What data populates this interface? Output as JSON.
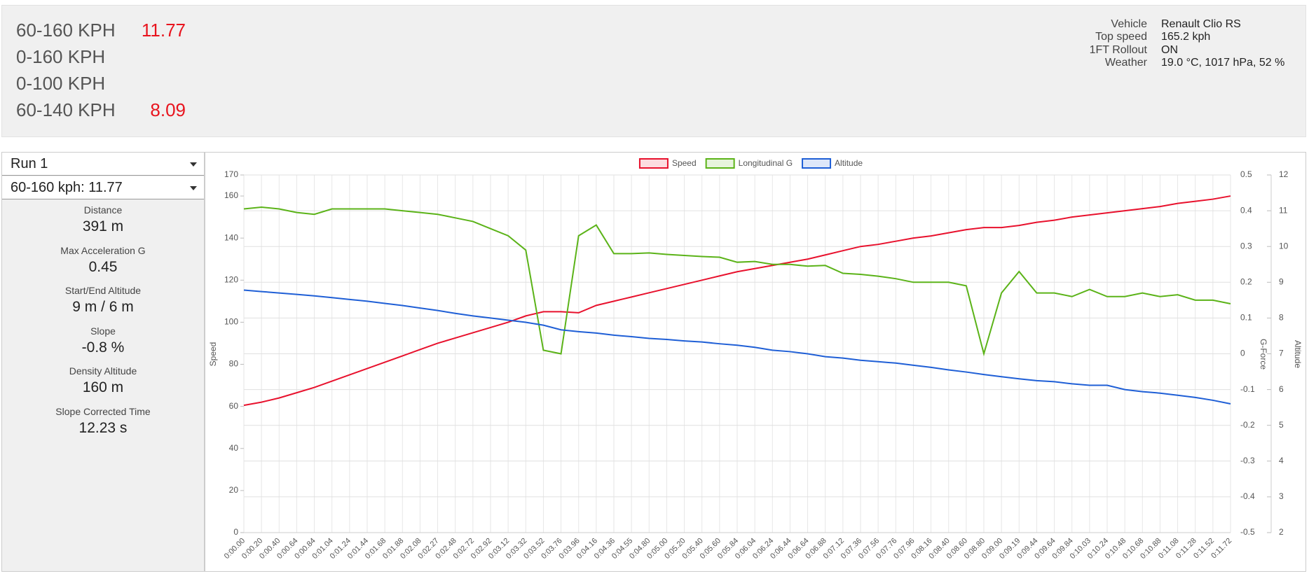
{
  "header": {
    "results": [
      {
        "label": "60-160 KPH",
        "value": "11.77"
      },
      {
        "label": "0-160 KPH"
      },
      {
        "label": "0-100 KPH"
      },
      {
        "label": "60-140 KPH",
        "value": "8.09"
      }
    ],
    "vehicle": [
      {
        "key": "Vehicle",
        "value": "Renault Clio RS"
      },
      {
        "key": "Top speed",
        "value": "165.2 kph"
      },
      {
        "key": "1FT Rollout",
        "value": "ON"
      },
      {
        "key": "Weather",
        "value": "19.0 °C, 1017 hPa, 52 %"
      }
    ]
  },
  "sidebar": {
    "run": "Run 1",
    "segment": "60-160 kph: 11.77",
    "stats": [
      {
        "label": "Distance",
        "value": "391 m"
      },
      {
        "label": "Max Acceleration G",
        "value": "0.45"
      },
      {
        "label": "Start/End Altitude",
        "value": "9 m / 6 m"
      },
      {
        "label": "Slope",
        "value": "-0.8 %"
      },
      {
        "label": "Density Altitude",
        "value": "160 m"
      },
      {
        "label": "Slope Corrected Time",
        "value": "12.23 s"
      }
    ]
  },
  "chart_data": {
    "type": "line",
    "ylabel": "Speed",
    "y2label": "G-Force",
    "y3label": "Altitude",
    "categories": [
      "0:00.00",
      "0:00.20",
      "0:00.40",
      "0:00.64",
      "0:00.84",
      "0:01.04",
      "0:01.24",
      "0:01.44",
      "0:01.68",
      "0:01.88",
      "0:02.08",
      "0:02.27",
      "0:02.48",
      "0:02.72",
      "0:02.92",
      "0:03.12",
      "0:03.32",
      "0:03.52",
      "0:03.76",
      "0:03.96",
      "0:04.16",
      "0:04.36",
      "0:04.55",
      "0:04.80",
      "0:05.00",
      "0:05.20",
      "0:05.40",
      "0:05.60",
      "0:05.84",
      "0:06.04",
      "0:06.24",
      "0:06.44",
      "0:06.64",
      "0:06.88",
      "0:07.12",
      "0:07.36",
      "0:07.56",
      "0:07.76",
      "0:07.96",
      "0:08.16",
      "0:08.40",
      "0:08.60",
      "0:08.80",
      "0:09.00",
      "0:09.19",
      "0:09.44",
      "0:09.64",
      "0:09.84",
      "0:10.03",
      "0:10.24",
      "0:10.48",
      "0:10.68",
      "0:10.88",
      "0:11.08",
      "0:11.28",
      "0:11.52",
      "0:11.72"
    ],
    "series": [
      {
        "name": "Speed",
        "color": "#e8112d",
        "axis": "y",
        "values": [
          60.5,
          62,
          64,
          66.5,
          69,
          72,
          75,
          78,
          81,
          84,
          87,
          90,
          92.5,
          95,
          97.5,
          100,
          103,
          105,
          105,
          104.5,
          108,
          110,
          112,
          114,
          116,
          118,
          120,
          122,
          124,
          125.5,
          127,
          128.5,
          130,
          132,
          134,
          136,
          137,
          138.5,
          140,
          141,
          142.5,
          144,
          145,
          145,
          146,
          147.5,
          148.5,
          150,
          151,
          152,
          153,
          154,
          155,
          156.5,
          157.5,
          158.5,
          160
        ]
      },
      {
        "name": "Longitudinal G",
        "color": "#5bb318",
        "axis": "y2",
        "values": [
          0.405,
          0.41,
          0.405,
          0.395,
          0.39,
          0.405,
          0.405,
          0.405,
          0.405,
          0.4,
          0.395,
          0.39,
          0.38,
          0.37,
          0.35,
          0.33,
          0.29,
          0.01,
          0,
          0.33,
          0.36,
          0.28,
          0.28,
          0.282,
          0.278,
          0.275,
          0.272,
          0.27,
          0.256,
          0.258,
          0.25,
          0.25,
          0.245,
          0.247,
          0.225,
          0.222,
          0.217,
          0.21,
          0.2,
          0.2,
          0.2,
          0.19,
          0,
          0.17,
          0.23,
          0.17,
          0.17,
          0.16,
          0.18,
          0.16,
          0.16,
          0.17,
          0.16,
          0.165,
          0.15,
          0.15,
          0.14
        ]
      },
      {
        "name": "Altitude",
        "color": "#1f5fd6",
        "axis": "y3",
        "values": [
          8.78,
          8.74,
          8.7,
          8.66,
          8.62,
          8.57,
          8.52,
          8.47,
          8.41,
          8.35,
          8.28,
          8.21,
          8.13,
          8.06,
          8.0,
          7.94,
          7.88,
          7.8,
          7.67,
          7.62,
          7.58,
          7.52,
          7.48,
          7.43,
          7.4,
          7.36,
          7.33,
          7.28,
          7.24,
          7.18,
          7.1,
          7.06,
          7.0,
          6.92,
          6.88,
          6.82,
          6.78,
          6.74,
          6.68,
          6.62,
          6.55,
          6.49,
          6.42,
          6.36,
          6.3,
          6.25,
          6.22,
          6.16,
          6.12,
          6.12,
          6.0,
          5.94,
          5.9,
          5.84,
          5.78,
          5.7,
          5.6
        ]
      }
    ],
    "ylim": [
      0,
      170
    ],
    "yticks": [
      0,
      20,
      40,
      60,
      80,
      100,
      120,
      140,
      160,
      170
    ],
    "y2lim": [
      -0.5,
      0.5
    ],
    "y2ticks": [
      -0.5,
      -0.4,
      -0.3,
      -0.2,
      -0.1,
      0,
      0.1,
      0.2,
      0.3,
      0.4,
      0.5
    ],
    "y3lim": [
      2,
      12
    ],
    "y3ticks": [
      2,
      3,
      4,
      5,
      6,
      7,
      8,
      9,
      10,
      11,
      12
    ],
    "grid": true
  }
}
